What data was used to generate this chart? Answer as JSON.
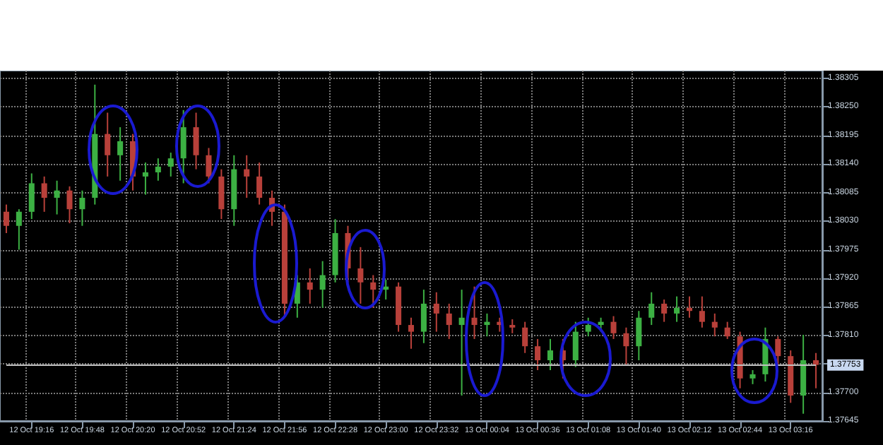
{
  "chart_data": {
    "type": "candlestick",
    "categories": [
      null,
      null,
      "12 Oct 19:16",
      null,
      null,
      null,
      "12 Oct 19:48",
      null,
      null,
      null,
      "12 Oct 20:20",
      null,
      null,
      null,
      "12 Oct 20:52",
      null,
      null,
      null,
      "12 Oct 21:24",
      null,
      null,
      null,
      "12 Oct 21:56",
      null,
      null,
      null,
      "12 Oct 22:28",
      null,
      null,
      null,
      "12 Oct 23:00",
      null,
      null,
      null,
      "12 Oct 23:32",
      null,
      null,
      null,
      "13 Oct 00:04",
      null,
      null,
      null,
      "13 Oct 00:36",
      null,
      null,
      null,
      "13 Oct 01:08",
      null,
      null,
      null,
      "13 Oct 01:40",
      null,
      null,
      null,
      "13 Oct 02:12",
      null,
      null,
      null,
      "13 Oct 02:44",
      null,
      null,
      null,
      "13 Oct 03:16",
      null,
      null
    ],
    "colors": [
      "#b8403a",
      "#3cb043",
      "#3cb043",
      "#b8403a",
      "#3cb043",
      "#b8403a",
      "#3cb043",
      "#3cb043",
      "#b8403a",
      "#3cb043",
      "#b8403a",
      "#3cb043",
      "#3cb043",
      "#3cb043",
      "#3cb043",
      "#b8403a",
      "#b8403a",
      "#b8403a",
      "#3cb043",
      "#b8403a",
      "#b8403a",
      "#b8403a",
      "#b8403a",
      "#3cb043",
      "#b8403a",
      "#3cb043",
      "#3cb043",
      "#b8403a",
      "#b8403a",
      "#b8403a",
      "#3cb043",
      "#b8403a",
      "#b8403a",
      "#3cb043",
      "#b8403a",
      "#b8403a",
      "#3cb043",
      "#b8403a",
      "#3cb043",
      "#b8403a",
      "#b8403a",
      "#b8403a",
      "#b8403a",
      "#3cb043",
      "#b8403a",
      "#3cb043",
      "#3cb043",
      "#3cb043",
      "#b8403a",
      "#b8403a",
      "#3cb043",
      "#3cb043",
      "#b8403a",
      "#3cb043",
      "#b8403a",
      "#b8403a",
      "#b8403a",
      "#b8403a",
      "#b8403a",
      "#3cb043",
      "#3cb043",
      "#b8403a",
      "#b8403a",
      "#3cb043",
      "#b8403a"
    ],
    "ohlc": [
      [
        1.38048,
        1.38062,
        1.38007,
        1.38021
      ],
      [
        1.38021,
        1.38053,
        1.37975,
        1.38048
      ],
      [
        1.38048,
        1.38122,
        1.38034,
        1.38103
      ],
      [
        1.38103,
        1.38116,
        1.38048,
        1.38075
      ],
      [
        1.38075,
        1.38108,
        1.38043,
        1.38089
      ],
      [
        1.38089,
        1.38097,
        1.38026,
        1.38053
      ],
      [
        1.38053,
        1.38089,
        1.38021,
        1.38075
      ],
      [
        1.38075,
        1.38293,
        1.38062,
        1.38198
      ],
      [
        1.38198,
        1.38239,
        1.38116,
        1.38157
      ],
      [
        1.38157,
        1.38211,
        1.38108,
        1.38184
      ],
      [
        1.38184,
        1.38198,
        1.38089,
        1.38116
      ],
      [
        1.38116,
        1.38143,
        1.38081,
        1.38124
      ],
      [
        1.38124,
        1.38151,
        1.38108,
        1.38135
      ],
      [
        1.38135,
        1.38162,
        1.38116,
        1.38151
      ],
      [
        1.38151,
        1.38244,
        1.38103,
        1.38211
      ],
      [
        1.38211,
        1.38239,
        1.3813,
        1.38157
      ],
      [
        1.38157,
        1.38171,
        1.38103,
        1.38116
      ],
      [
        1.38116,
        1.3813,
        1.38034,
        1.38053
      ],
      [
        1.38053,
        1.38157,
        1.38021,
        1.3813
      ],
      [
        1.3813,
        1.38157,
        1.38075,
        1.38116
      ],
      [
        1.38116,
        1.38143,
        1.38062,
        1.38075
      ],
      [
        1.38075,
        1.38089,
        1.38021,
        1.38048
      ],
      [
        1.38048,
        1.38062,
        1.37844,
        1.37871
      ],
      [
        1.37871,
        1.37926,
        1.37844,
        1.37912
      ],
      [
        1.37912,
        1.37939,
        1.37871,
        1.37898
      ],
      [
        1.37898,
        1.37953,
        1.37863,
        1.37926
      ],
      [
        1.37926,
        1.38034,
        1.37912,
        1.38007
      ],
      [
        1.38007,
        1.38021,
        1.37912,
        1.37939
      ],
      [
        1.37939,
        1.3798,
        1.37871,
        1.37912
      ],
      [
        1.37912,
        1.37926,
        1.37863,
        1.37898
      ],
      [
        1.37898,
        1.37917,
        1.37879,
        1.37904
      ],
      [
        1.37904,
        1.37912,
        1.37817,
        1.3783
      ],
      [
        1.3783,
        1.37844,
        1.37784,
        1.37817
      ],
      [
        1.37817,
        1.37898,
        1.37795,
        1.37871
      ],
      [
        1.37871,
        1.37893,
        1.37817,
        1.37852
      ],
      [
        1.37852,
        1.37871,
        1.37803,
        1.3783
      ],
      [
        1.3783,
        1.37898,
        1.37694,
        1.37844
      ],
      [
        1.37844,
        1.37904,
        1.37803,
        1.3783
      ],
      [
        1.3783,
        1.37852,
        1.37808,
        1.37836
      ],
      [
        1.37836,
        1.37844,
        1.37817,
        1.3783
      ],
      [
        1.3783,
        1.37841,
        1.37814,
        1.37825
      ],
      [
        1.37825,
        1.37836,
        1.37776,
        1.37789
      ],
      [
        1.37789,
        1.37803,
        1.37743,
        1.37762
      ],
      [
        1.37762,
        1.37803,
        1.37743,
        1.37781
      ],
      [
        1.37781,
        1.37803,
        1.37727,
        1.37762
      ],
      [
        1.37762,
        1.37836,
        1.37749,
        1.37817
      ],
      [
        1.37817,
        1.37844,
        1.37808,
        1.3783
      ],
      [
        1.3783,
        1.37844,
        1.37817,
        1.37836
      ],
      [
        1.37836,
        1.37847,
        1.37803,
        1.37814
      ],
      [
        1.37814,
        1.37825,
        1.37754,
        1.37789
      ],
      [
        1.37789,
        1.37857,
        1.37762,
        1.37844
      ],
      [
        1.37844,
        1.37893,
        1.3783,
        1.37871
      ],
      [
        1.37871,
        1.37879,
        1.37836,
        1.37852
      ],
      [
        1.37852,
        1.37885,
        1.37836,
        1.37863
      ],
      [
        1.37863,
        1.37885,
        1.37844,
        1.37857
      ],
      [
        1.37857,
        1.37885,
        1.37825,
        1.37836
      ],
      [
        1.37836,
        1.37852,
        1.37808,
        1.37825
      ],
      [
        1.37825,
        1.37836,
        1.37803,
        1.37808
      ],
      [
        1.37808,
        1.37817,
        1.37708,
        1.37727
      ],
      [
        1.37727,
        1.37743,
        1.37716,
        1.37735
      ],
      [
        1.37735,
        1.37825,
        1.37721,
        1.37803
      ],
      [
        1.37803,
        1.37808,
        1.37754,
        1.3777
      ],
      [
        1.3777,
        1.37781,
        1.3768,
        1.37694
      ],
      [
        1.37694,
        1.37811,
        1.37659,
        1.37762
      ],
      [
        1.37762,
        1.37776,
        1.37708,
        1.37753
      ]
    ],
    "ylim": [
      1.37645,
      1.3832
    ],
    "yticks": [
      1.37645,
      {
        "value": 1.377,
        "label": "1.37700"
      },
      {
        "value": 1.37755,
        "label": null
      },
      {
        "value": 1.3781,
        "label": "1.37810"
      },
      1.37865,
      {
        "value": 1.3792,
        "label": "1.37920"
      },
      1.37975,
      {
        "value": 1.3803,
        "label": "1.38030"
      },
      1.38085,
      {
        "value": 1.3814,
        "label": "1.38140"
      },
      1.38195,
      {
        "value": 1.3825,
        "label": "1.38250"
      },
      1.38305
    ],
    "ref_lines": [
      {
        "axis": "y",
        "value": 1.37753,
        "label": "1.37753",
        "color": "#c0c0c0"
      }
    ],
    "grid": true
  }
}
